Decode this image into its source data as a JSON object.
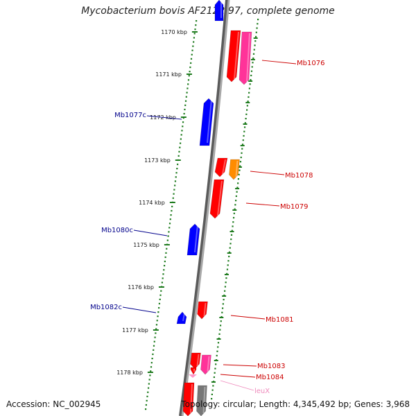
{
  "title": "Mycobacterium bovis AF2122/97, complete genome",
  "footer": {
    "accession": "Accession: NC_002945",
    "topology": "Topology: circular; Length: 4,345,492 bp; Genes: 3,968"
  },
  "colors": {
    "backbone": "#8a8a8a",
    "ruler_tick": "#1e7b1e",
    "reverse_gene": "#0000ff",
    "reverse_label": "#00008b",
    "forward_gene": "#ff0000",
    "forward_label": "#cc0000",
    "pink_gene": "#ff3399",
    "orange_gene": "#ff8c00",
    "trna_gene": "#ff99cc",
    "trna_label": "#ee88bb",
    "grey_gene": "#777777"
  },
  "ruler": [
    {
      "label": "1170 kbp"
    },
    {
      "label": "1171 kbp"
    },
    {
      "label": "1172 kbp"
    },
    {
      "label": "1173 kbp"
    },
    {
      "label": "1174 kbp"
    },
    {
      "label": "1175 kbp"
    },
    {
      "label": "1176 kbp"
    },
    {
      "label": "1177 kbp"
    },
    {
      "label": "1178 kbp"
    }
  ],
  "genes": [
    {
      "label": "Mb1076",
      "strand": "forward",
      "color": "#cc0000"
    },
    {
      "label": "Mb1077c",
      "strand": "reverse",
      "color": "#00008b"
    },
    {
      "label": "Mb1078",
      "strand": "forward",
      "color": "#cc0000"
    },
    {
      "label": "Mb1079",
      "strand": "forward",
      "color": "#cc0000"
    },
    {
      "label": "Mb1080c",
      "strand": "reverse",
      "color": "#00008b"
    },
    {
      "label": "Mb1081",
      "strand": "forward",
      "color": "#cc0000"
    },
    {
      "label": "Mb1082c",
      "strand": "reverse",
      "color": "#00008b"
    },
    {
      "label": "Mb1083",
      "strand": "forward",
      "color": "#cc0000"
    },
    {
      "label": "Mb1084",
      "strand": "forward",
      "color": "#cc0000"
    },
    {
      "label": "leuX",
      "strand": "forward",
      "color": "#ee88bb"
    }
  ]
}
